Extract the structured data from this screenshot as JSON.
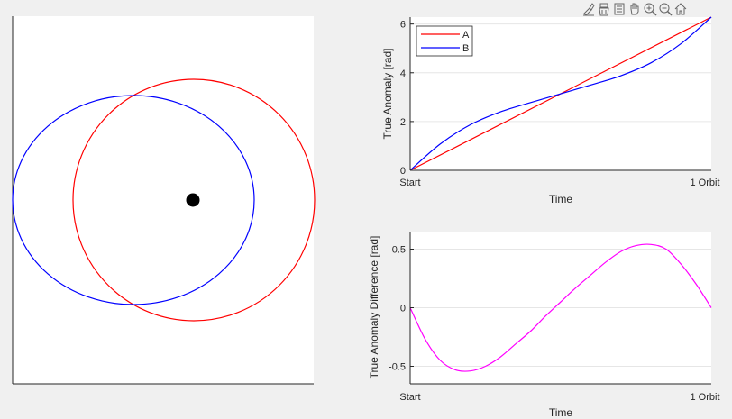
{
  "toolbar": {
    "icons": [
      "brush-icon",
      "data-tips-icon",
      "export-icon",
      "pan-icon",
      "zoom-in-icon",
      "zoom-out-icon",
      "home-icon"
    ]
  },
  "orbit_plot": {
    "colors": {
      "orbit_a": "#ff0000",
      "orbit_b": "#0000ff",
      "central_body": "#000000"
    }
  },
  "chart_data": [
    {
      "type": "line",
      "xlabel": "Time",
      "ylabel": "True Anomaly [rad]",
      "xticks": [
        "Start",
        "1 Orbit"
      ],
      "yticks": [
        "0",
        "2",
        "4",
        "6"
      ],
      "ylim": [
        0,
        6.2832
      ],
      "xlim": [
        0,
        1
      ],
      "grid": true,
      "legend": "top-left",
      "series": [
        {
          "name": "A",
          "color": "#ff0000",
          "x": [
            0,
            1
          ],
          "y": [
            0,
            6.2832
          ]
        },
        {
          "name": "B",
          "color": "#0000ff",
          "x": [
            0,
            0.1,
            0.2,
            0.3,
            0.4,
            0.5,
            0.6,
            0.7,
            0.8,
            0.9,
            1.0
          ],
          "y": [
            0,
            1.08,
            1.87,
            2.4,
            2.78,
            3.14,
            3.5,
            3.88,
            4.41,
            5.2,
            6.2832
          ]
        }
      ]
    },
    {
      "type": "line",
      "xlabel": "Time",
      "ylabel": "True Anomaly Difference [rad]",
      "xticks": [
        "Start",
        "1 Orbit"
      ],
      "yticks": [
        "0.5",
        "0",
        "-0.5"
      ],
      "ylim": [
        -0.65,
        0.65
      ],
      "xlim": [
        0,
        1
      ],
      "grid": true,
      "series": [
        {
          "color": "#ff00ff",
          "x": [
            0,
            0.05,
            0.1,
            0.15,
            0.2,
            0.25,
            0.3,
            0.35,
            0.4,
            0.45,
            0.5,
            0.55,
            0.6,
            0.65,
            0.7,
            0.75,
            0.8,
            0.85,
            0.9,
            0.95,
            1.0
          ],
          "y": [
            0,
            -0.27,
            -0.45,
            -0.53,
            -0.54,
            -0.5,
            -0.42,
            -0.31,
            -0.2,
            -0.07,
            0.05,
            0.17,
            0.28,
            0.39,
            0.48,
            0.53,
            0.54,
            0.5,
            0.37,
            0.2,
            0
          ]
        }
      ]
    }
  ]
}
